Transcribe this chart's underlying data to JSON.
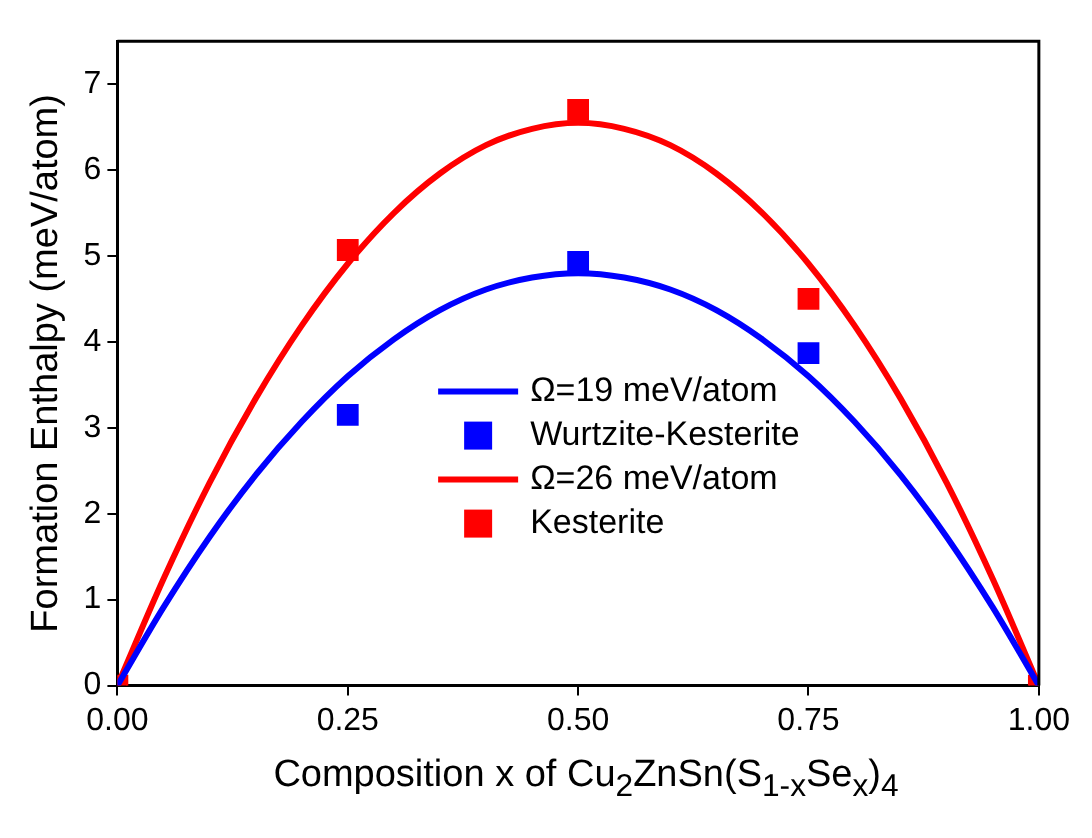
{
  "chart_data": {
    "type": "line",
    "xlabel": "Composition x of Cu$_{2}$ZnSn(S$_{1-x}$Se$_{x}$)$_{4}$",
    "ylabel": "Formation Enthalpy (meV/atom)",
    "xlim": [
      0,
      1
    ],
    "xticks": [
      {
        "value": 0,
        "label": "0.00"
      },
      {
        "value": 0.25,
        "label": "0.25"
      },
      {
        "value": 0.5,
        "label": "0.50"
      },
      {
        "value": 0.75,
        "label": "0.75"
      },
      {
        "value": 1,
        "label": "1.00"
      }
    ],
    "ylim": [
      0,
      7.5
    ],
    "yticks": [
      0,
      1,
      2,
      3,
      4,
      5,
      6,
      7
    ],
    "grid": false,
    "legend": "bottom",
    "series": [
      {
        "name": "Ω=19 meV/atom",
        "type": "line",
        "color": "#0000ff",
        "marker": "none",
        "x": [
          0,
          0.05,
          0.1,
          0.15,
          0.2,
          0.25,
          0.3,
          0.35,
          0.4,
          0.45,
          0.5,
          0.55,
          0.6,
          0.65,
          0.7,
          0.75,
          0.8,
          0.85,
          0.9,
          0.95,
          1
        ],
        "values": [
          0,
          0.91,
          1.73,
          2.45,
          3.07,
          3.6,
          4.03,
          4.37,
          4.61,
          4.75,
          4.8,
          4.75,
          4.61,
          4.37,
          4.03,
          3.6,
          3.07,
          2.45,
          1.73,
          0.91,
          0
        ]
      },
      {
        "name": "Wurtzite-Kesterite",
        "type": "scatter",
        "color": "#0000ff",
        "marker": "square",
        "x": [
          0.25,
          0.5,
          0.75
        ],
        "values": [
          3.15,
          4.93,
          3.87
        ]
      },
      {
        "name": "Ω=26 meV/atom",
        "type": "line",
        "color": "#ff0000",
        "marker": "none",
        "x": [
          0,
          0.05,
          0.1,
          0.15,
          0.2,
          0.25,
          0.3,
          0.35,
          0.4,
          0.45,
          0.5,
          0.55,
          0.6,
          0.65,
          0.7,
          0.75,
          0.8,
          0.85,
          0.9,
          0.95,
          1
        ],
        "values": [
          0,
          1.24,
          2.36,
          3.34,
          4.19,
          4.91,
          5.5,
          5.96,
          6.29,
          6.48,
          6.55,
          6.48,
          6.29,
          5.96,
          5.5,
          4.91,
          4.19,
          3.34,
          2.36,
          1.24,
          0
        ]
      },
      {
        "name": "Kesterite",
        "type": "scatter",
        "color": "#ff0000",
        "marker": "square",
        "x": [
          0,
          0.25,
          0.5,
          0.75,
          1
        ],
        "values": [
          0,
          5.07,
          6.7,
          4.5,
          0
        ]
      }
    ]
  }
}
